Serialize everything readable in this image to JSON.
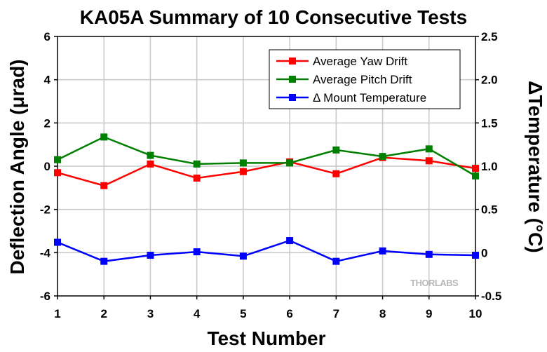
{
  "chart_data": {
    "type": "line",
    "title": "KA05A Summary of 10 Consecutive Tests",
    "xlabel": "Test Number",
    "ylabel": "Deflection Angle (μrad)",
    "y2label": "ΔTemperature (°C)",
    "categories": [
      1,
      2,
      3,
      4,
      5,
      6,
      7,
      8,
      9,
      10
    ],
    "xlim": [
      1,
      10
    ],
    "ylim": [
      -6,
      6
    ],
    "y2lim": [
      -0.5,
      2.5
    ],
    "xticks": [
      "1",
      "2",
      "3",
      "4",
      "5",
      "6",
      "7",
      "8",
      "9",
      "10"
    ],
    "yticks": [
      "-6",
      "-4",
      "-2",
      "0",
      "2",
      "4",
      "6"
    ],
    "y2ticks": [
      "-0.5",
      "0",
      "0.5",
      "1.0",
      "1.5",
      "2.0",
      "2.5"
    ],
    "grid": true,
    "legend_position": "top-right",
    "series": [
      {
        "name": "Average Yaw Drift",
        "axis": "left",
        "color": "#ff0000",
        "values": [
          -0.3,
          -0.9,
          0.1,
          -0.55,
          -0.25,
          0.2,
          -0.35,
          0.4,
          0.25,
          -0.1
        ]
      },
      {
        "name": "Average Pitch Drift",
        "axis": "left",
        "color": "#008000",
        "values": [
          0.3,
          1.35,
          0.5,
          0.1,
          0.15,
          0.15,
          0.75,
          0.45,
          0.8,
          -0.45
        ]
      },
      {
        "name": "Δ Mount Temperature",
        "axis": "right",
        "color": "#0000ff",
        "values": [
          0.12,
          -0.1,
          -0.03,
          0.01,
          -0.04,
          0.14,
          -0.1,
          0.02,
          -0.02,
          -0.03
        ]
      }
    ]
  },
  "watermark": "THORLABS",
  "colors": {
    "grid": "#c8c8c8",
    "axis": "#000000"
  }
}
